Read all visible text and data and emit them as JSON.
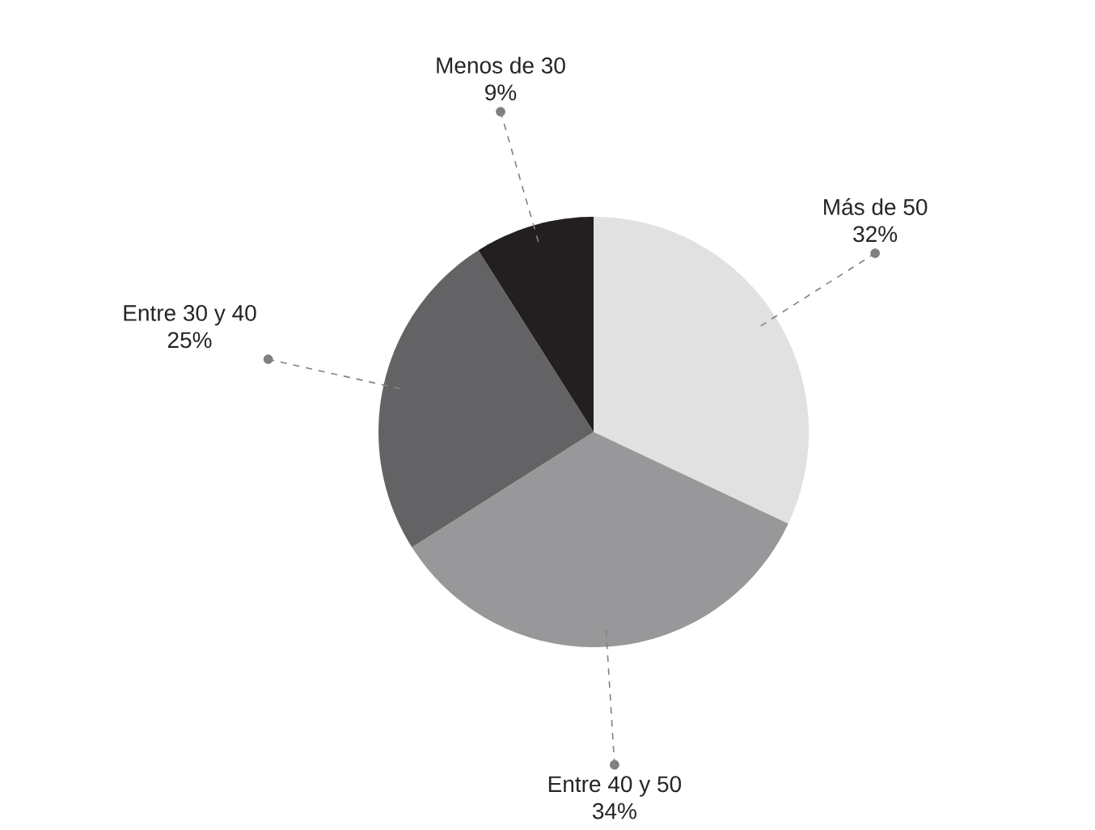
{
  "chart_data": {
    "type": "pie",
    "categories": [
      "Más de 50",
      "Entre 40 y 50",
      "Entre 30 y 40",
      "Menos de 30"
    ],
    "values": [
      32,
      34,
      25,
      9
    ],
    "value_labels": [
      "32%",
      "34%",
      "25%",
      "9%"
    ],
    "colors": [
      "#e1e1e2",
      "#98989a",
      "#636365",
      "#231f20"
    ]
  }
}
